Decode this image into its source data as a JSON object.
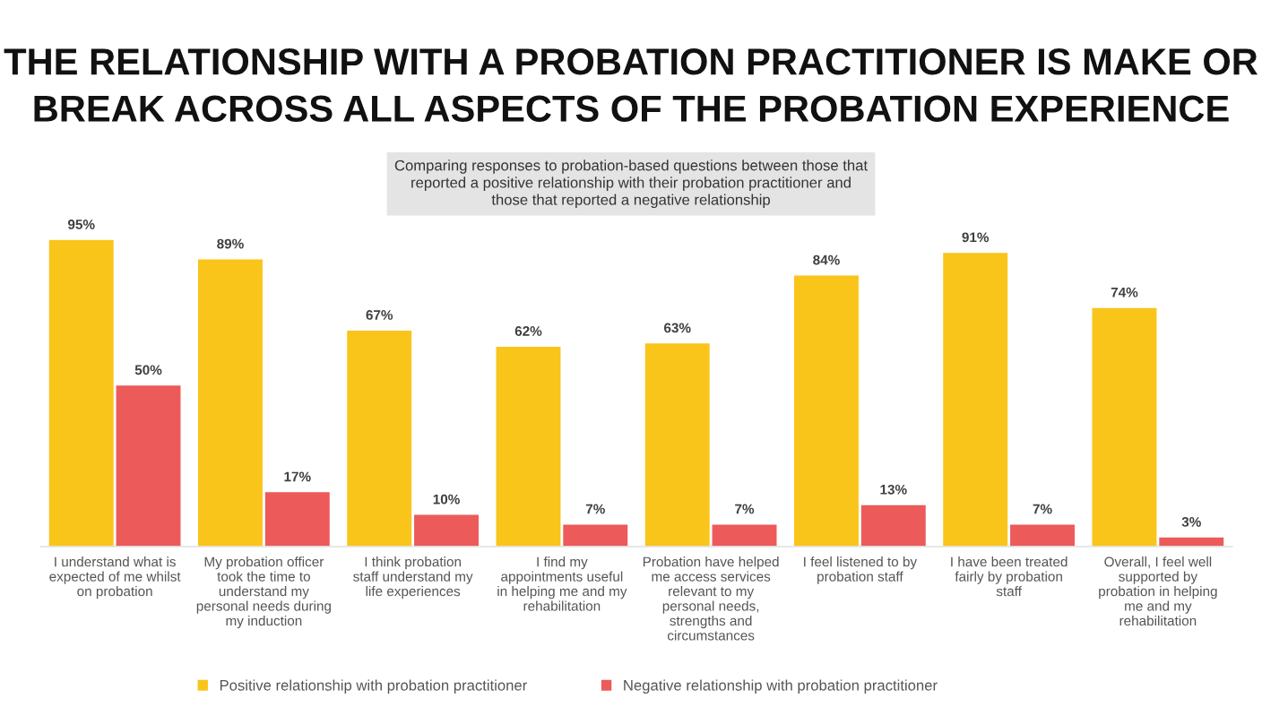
{
  "chart_data": {
    "type": "bar",
    "title": "THE RELATIONSHIP WITH A PROBATION PRACTITIONER IS MAKE OR BREAK ACROSS ALL ASPECTS OF THE PROBATION EXPERIENCE",
    "subtitle": "Comparing responses to probation-based questions between those that reported a positive relationship with their probation practitioner and those that reported a negative relationship",
    "categories": [
      "I understand what is expected of me whilst on probation",
      "My probation officer took the time to understand my personal needs during my induction",
      "I think probation staff understand my life experiences",
      "I find my appointments useful in helping me and my rehabilitation",
      "Probation have helped me access services relevant to my personal needs, strengths and circumstances",
      "I feel listened to by probation staff",
      "I have been treated fairly by probation staff",
      "Overall, I feel well supported by probation in helping me and my rehabilitation"
    ],
    "series": [
      {
        "name": "Positive relationship with probation practitioner",
        "color": "#f9c51b",
        "values": [
          95,
          89,
          67,
          62,
          63,
          84,
          91,
          74
        ],
        "value_labels": [
          "95%",
          "89%",
          "67%",
          "62%",
          "63%",
          "84%",
          "91%",
          "74%"
        ]
      },
      {
        "name": "Negative relationship with probation practitioner",
        "color": "#ec5a5a",
        "values": [
          50,
          17,
          10,
          7,
          7,
          13,
          7,
          3
        ],
        "value_labels": [
          "50%",
          "17%",
          "10%",
          "7%",
          "7%",
          "13%",
          "7%",
          "3%"
        ]
      }
    ],
    "legend": "bottom",
    "grid": false
  }
}
